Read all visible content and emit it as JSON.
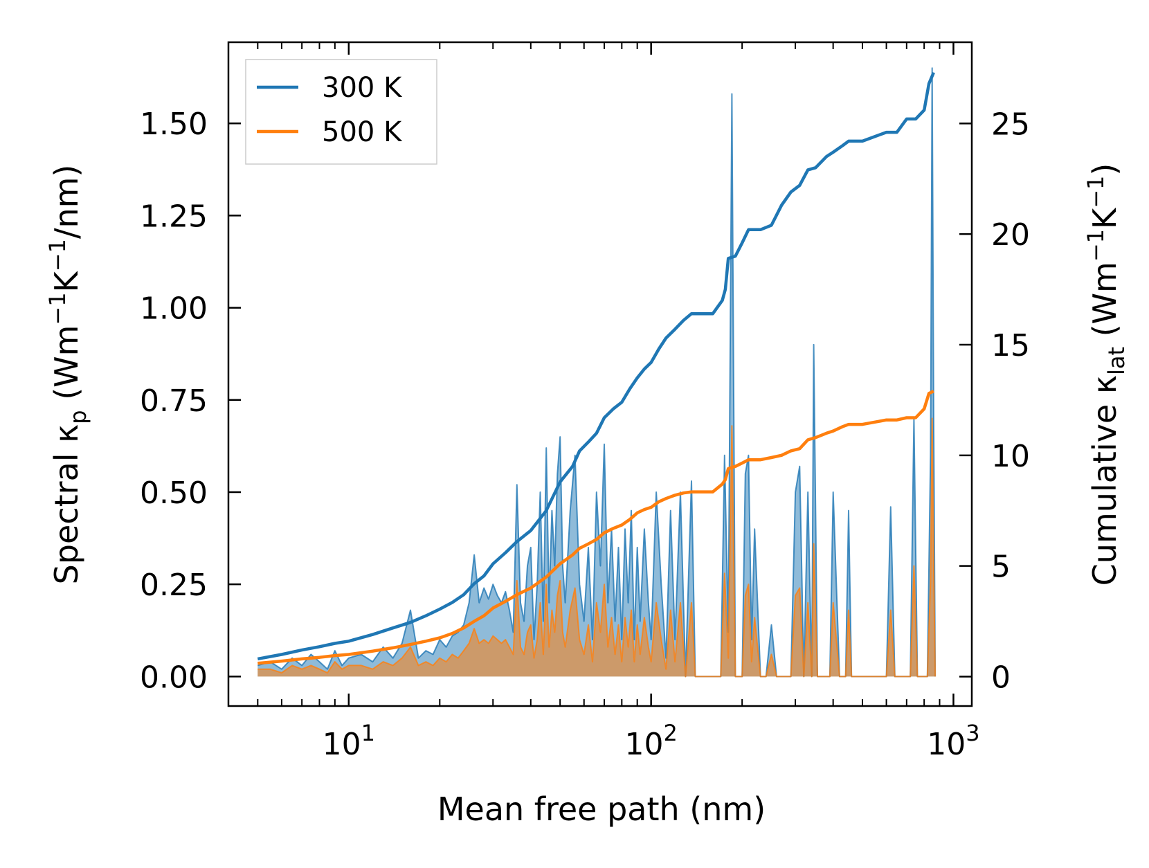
{
  "chart_data": {
    "type": "line",
    "xlabel": "Mean free path (nm)",
    "x_scale": "log",
    "xlim": [
      4.0,
      1150
    ],
    "x_major_ticks": [
      10,
      100,
      1000
    ],
    "x_tick_labels": [
      "10",
      "10",
      "10"
    ],
    "x_tick_exponents": [
      "1",
      "2",
      "3"
    ],
    "ylabel_left": {
      "prefix": "Spectral κ",
      "sub": "p",
      "units": " (Wm",
      "sup1": "−1",
      "k": "K",
      "sup2": "−1",
      "tail": "/nm)"
    },
    "ylim_left": [
      -0.08,
      1.72
    ],
    "y_left_ticks": [
      0.0,
      0.25,
      0.5,
      0.75,
      1.0,
      1.25,
      1.5
    ],
    "y_left_tick_labels": [
      "0.00",
      "0.25",
      "0.50",
      "0.75",
      "1.00",
      "1.25",
      "1.50"
    ],
    "ylabel_right": {
      "prefix": "Cumulative κ",
      "sub": "lat",
      "units": " (Wm",
      "sup1": "−1",
      "k": "K",
      "sup2": "−1",
      "tail": ")"
    },
    "ylim_right": [
      -1.33,
      28.67
    ],
    "y_right_ticks": [
      0,
      5,
      10,
      15,
      20,
      25
    ],
    "y_right_tick_labels": [
      "0",
      "5",
      "10",
      "15",
      "20",
      "25"
    ],
    "legend": {
      "position": "top-left",
      "entries": [
        "300 K",
        "500 K"
      ]
    },
    "colors": {
      "300 K": "#1f77b4",
      "500 K": "#ff7f0e"
    },
    "series": [
      {
        "name": "300 K",
        "axis": "right",
        "kind": "cumulative",
        "x": [
          5.0,
          6.0,
          7.0,
          8.0,
          9.0,
          10.0,
          12.0,
          14.0,
          16.0,
          18.0,
          20.0,
          22.0,
          24.0,
          26.0,
          28.0,
          30.0,
          33.0,
          36.0,
          40.0,
          45.0,
          50.0,
          55.0,
          58.0,
          62.0,
          66.0,
          70.0,
          75.0,
          80.0,
          85.0,
          90.0,
          95.0,
          100.0,
          106.0,
          112.0,
          120.0,
          128.0,
          136.0,
          160.0,
          172.0,
          176.0,
          180.0,
          190.0,
          200.0,
          210.0,
          230.0,
          250.0,
          270.0,
          290.0,
          310.0,
          330.0,
          350.0,
          380.0,
          400.0,
          430.0,
          450.0,
          500.0,
          600.0,
          650.0,
          700.0,
          750.0,
          800.0,
          830.0,
          860.0
        ],
        "y": [
          0.8,
          1.0,
          1.2,
          1.35,
          1.5,
          1.6,
          1.9,
          2.2,
          2.45,
          2.75,
          3.05,
          3.35,
          3.7,
          4.2,
          4.55,
          5.1,
          5.6,
          6.1,
          6.6,
          7.5,
          8.8,
          9.5,
          10.2,
          10.6,
          11.0,
          11.7,
          12.1,
          12.4,
          13.0,
          13.5,
          13.9,
          14.2,
          14.8,
          15.3,
          15.7,
          16.1,
          16.4,
          16.4,
          17.0,
          17.5,
          18.9,
          19.0,
          19.6,
          20.2,
          20.2,
          20.4,
          21.3,
          21.9,
          22.2,
          22.9,
          23.0,
          23.5,
          23.7,
          24.0,
          24.2,
          24.2,
          24.6,
          24.6,
          25.2,
          25.2,
          25.6,
          26.8,
          27.3
        ]
      },
      {
        "name": "500 K",
        "axis": "right",
        "kind": "cumulative",
        "x": [
          5.0,
          6.0,
          7.0,
          8.0,
          9.0,
          10.0,
          12.0,
          14.0,
          16.0,
          18.0,
          20.0,
          22.0,
          24.0,
          26.0,
          28.0,
          30.0,
          33.0,
          36.0,
          40.0,
          45.0,
          50.0,
          55.0,
          58.0,
          62.0,
          66.0,
          70.0,
          75.0,
          80.0,
          85.0,
          90.0,
          95.0,
          100.0,
          106.0,
          112.0,
          120.0,
          128.0,
          136.0,
          160.0,
          172.0,
          176.0,
          180.0,
          190.0,
          200.0,
          210.0,
          230.0,
          250.0,
          270.0,
          290.0,
          310.0,
          330.0,
          350.0,
          380.0,
          400.0,
          430.0,
          450.0,
          500.0,
          600.0,
          650.0,
          700.0,
          750.0,
          800.0,
          830.0,
          860.0
        ],
        "y": [
          0.6,
          0.7,
          0.8,
          0.87,
          0.95,
          1.0,
          1.15,
          1.3,
          1.45,
          1.6,
          1.75,
          1.95,
          2.2,
          2.5,
          2.75,
          3.1,
          3.4,
          3.7,
          4.0,
          4.5,
          5.1,
          5.5,
          5.8,
          6.0,
          6.2,
          6.5,
          6.7,
          6.85,
          7.1,
          7.4,
          7.55,
          7.65,
          7.9,
          8.05,
          8.2,
          8.3,
          8.35,
          8.35,
          8.7,
          8.9,
          9.4,
          9.5,
          9.65,
          9.8,
          9.8,
          9.9,
          10.0,
          10.2,
          10.3,
          10.7,
          10.8,
          11.0,
          11.1,
          11.3,
          11.4,
          11.4,
          11.6,
          11.6,
          11.7,
          11.7,
          12.1,
          12.8,
          12.9
        ]
      },
      {
        "name": "300 K spectral",
        "axis": "left",
        "kind": "spectral",
        "x": [
          5.0,
          5.5,
          6.0,
          6.5,
          7.0,
          7.5,
          8.0,
          8.5,
          9.0,
          9.5,
          10.0,
          11.0,
          12.0,
          13.0,
          14.0,
          15.0,
          16.0,
          17.0,
          18.0,
          19.0,
          20.0,
          21.0,
          22.0,
          23.0,
          24.0,
          25.0,
          26.0,
          27.0,
          28.0,
          29.0,
          30.0,
          31.0,
          32.0,
          33.0,
          34.0,
          35.0,
          36.0,
          37.0,
          38.0,
          39.0,
          40.0,
          41.0,
          42.0,
          43.0,
          44.0,
          45.0,
          46.0,
          47.0,
          48.0,
          49.0,
          50.0,
          51.0,
          52.0,
          54.0,
          56.0,
          58.0,
          60.0,
          62.0,
          64.0,
          66.0,
          68.0,
          70.0,
          72.0,
          74.0,
          76.0,
          78.0,
          80.0,
          82.0,
          84.0,
          86.0,
          88.0,
          90.0,
          92.0,
          95.0,
          98.0,
          100.0,
          104.0,
          108.0,
          112.0,
          116.0,
          120.0,
          125.0,
          130.0,
          136.0,
          140.0,
          155.0,
          170.0,
          175.0,
          180.0,
          185.0,
          190.0,
          200.0,
          205.0,
          210.0,
          215.0,
          220.0,
          230.0,
          240.0,
          250.0,
          260.0,
          275.0,
          290.0,
          300.0,
          310.0,
          320.0,
          330.0,
          340.0,
          345.0,
          355.0,
          370.0,
          390.0,
          400.0,
          420.0,
          440.0,
          450.0,
          460.0,
          500.0,
          600.0,
          620.0,
          640.0,
          700.0,
          720.0,
          740.0,
          760.0,
          800.0,
          820.0,
          840.0,
          850.0,
          860.0,
          870.0
        ],
        "y": [
          0.03,
          0.04,
          0.02,
          0.05,
          0.03,
          0.06,
          0.04,
          0.02,
          0.07,
          0.03,
          0.05,
          0.06,
          0.04,
          0.08,
          0.05,
          0.09,
          0.18,
          0.05,
          0.07,
          0.06,
          0.1,
          0.08,
          0.11,
          0.12,
          0.14,
          0.2,
          0.33,
          0.2,
          0.24,
          0.21,
          0.25,
          0.22,
          0.2,
          0.23,
          0.18,
          0.12,
          0.52,
          0.2,
          0.15,
          0.3,
          0.35,
          0.1,
          0.25,
          0.5,
          0.15,
          0.62,
          0.2,
          0.45,
          0.3,
          0.55,
          0.65,
          0.3,
          0.2,
          0.45,
          0.6,
          0.25,
          0.15,
          0.35,
          0.1,
          0.5,
          0.3,
          0.63,
          0.2,
          0.4,
          0.15,
          0.35,
          0.1,
          0.4,
          0.2,
          0.45,
          0.1,
          0.35,
          0.15,
          0.4,
          0.2,
          0.1,
          0.5,
          0.25,
          0.05,
          0.45,
          0.1,
          0.5,
          0.0,
          0.53,
          0.0,
          0.0,
          0.0,
          0.6,
          0.12,
          1.58,
          0.0,
          0.0,
          0.55,
          0.6,
          0.1,
          0.4,
          0.0,
          0.0,
          0.14,
          0.0,
          0.0,
          0.0,
          0.5,
          0.57,
          0.0,
          0.5,
          0.0,
          0.9,
          0.0,
          0.0,
          0.0,
          0.5,
          0.0,
          0.0,
          0.45,
          0.0,
          0.0,
          0.0,
          0.46,
          0.0,
          0.0,
          0.0,
          0.7,
          0.0,
          0.0,
          0.0,
          0.6,
          1.65,
          0.7,
          0.0
        ]
      },
      {
        "name": "500 K spectral",
        "axis": "left",
        "kind": "spectral",
        "x": [
          5.0,
          5.5,
          6.0,
          6.5,
          7.0,
          7.5,
          8.0,
          8.5,
          9.0,
          9.5,
          10.0,
          11.0,
          12.0,
          13.0,
          14.0,
          15.0,
          16.0,
          17.0,
          18.0,
          19.0,
          20.0,
          21.0,
          22.0,
          23.0,
          24.0,
          25.0,
          26.0,
          27.0,
          28.0,
          29.0,
          30.0,
          31.0,
          32.0,
          33.0,
          34.0,
          35.0,
          36.0,
          37.0,
          38.0,
          39.0,
          40.0,
          41.0,
          42.0,
          43.0,
          44.0,
          45.0,
          46.0,
          47.0,
          48.0,
          49.0,
          50.0,
          51.0,
          52.0,
          54.0,
          56.0,
          58.0,
          60.0,
          62.0,
          64.0,
          66.0,
          68.0,
          70.0,
          72.0,
          74.0,
          76.0,
          78.0,
          80.0,
          82.0,
          84.0,
          86.0,
          88.0,
          90.0,
          92.0,
          95.0,
          98.0,
          100.0,
          104.0,
          108.0,
          112.0,
          116.0,
          120.0,
          125.0,
          130.0,
          136.0,
          140.0,
          155.0,
          170.0,
          175.0,
          180.0,
          185.0,
          190.0,
          200.0,
          205.0,
          210.0,
          215.0,
          220.0,
          230.0,
          240.0,
          250.0,
          260.0,
          275.0,
          290.0,
          300.0,
          310.0,
          320.0,
          330.0,
          340.0,
          345.0,
          355.0,
          370.0,
          390.0,
          400.0,
          420.0,
          440.0,
          450.0,
          460.0,
          500.0,
          600.0,
          620.0,
          640.0,
          700.0,
          720.0,
          740.0,
          760.0,
          800.0,
          820.0,
          840.0,
          850.0,
          860.0,
          870.0
        ],
        "y": [
          0.02,
          0.02,
          0.01,
          0.03,
          0.02,
          0.03,
          0.02,
          0.01,
          0.04,
          0.02,
          0.03,
          0.03,
          0.02,
          0.04,
          0.03,
          0.05,
          0.08,
          0.03,
          0.04,
          0.03,
          0.05,
          0.04,
          0.06,
          0.05,
          0.07,
          0.09,
          0.13,
          0.09,
          0.1,
          0.09,
          0.11,
          0.1,
          0.09,
          0.1,
          0.08,
          0.06,
          0.26,
          0.08,
          0.06,
          0.12,
          0.14,
          0.05,
          0.1,
          0.2,
          0.06,
          0.25,
          0.08,
          0.18,
          0.12,
          0.22,
          0.26,
          0.12,
          0.08,
          0.18,
          0.24,
          0.1,
          0.06,
          0.14,
          0.04,
          0.2,
          0.12,
          0.25,
          0.08,
          0.16,
          0.06,
          0.14,
          0.04,
          0.16,
          0.08,
          0.18,
          0.04,
          0.14,
          0.06,
          0.16,
          0.08,
          0.04,
          0.2,
          0.1,
          0.02,
          0.18,
          0.04,
          0.2,
          0.0,
          0.2,
          0.0,
          0.0,
          0.0,
          0.28,
          0.05,
          0.68,
          0.0,
          0.0,
          0.22,
          0.25,
          0.04,
          0.16,
          0.0,
          0.0,
          0.06,
          0.0,
          0.0,
          0.0,
          0.22,
          0.24,
          0.0,
          0.2,
          0.0,
          0.36,
          0.0,
          0.0,
          0.0,
          0.2,
          0.0,
          0.0,
          0.18,
          0.0,
          0.0,
          0.0,
          0.18,
          0.0,
          0.0,
          0.0,
          0.3,
          0.0,
          0.0,
          0.0,
          0.26,
          0.7,
          0.3,
          0.0
        ]
      }
    ]
  }
}
